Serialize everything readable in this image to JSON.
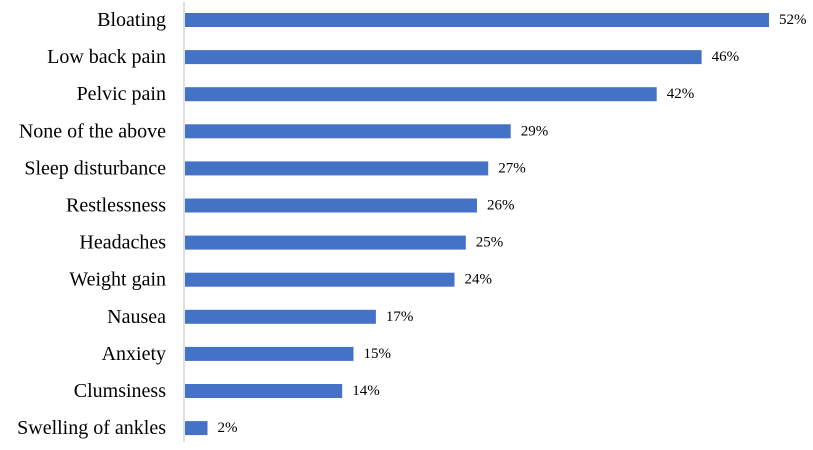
{
  "chart_data": {
    "type": "bar",
    "orientation": "horizontal",
    "title": "",
    "xlabel": "",
    "ylabel": "",
    "categories": [
      "Bloating",
      "Low back pain",
      "Pelvic pain",
      "None of the above",
      "Sleep disturbance",
      "Restlessness",
      "Headaches",
      "Weight gain",
      "Nausea",
      "Anxiety",
      "Clumsiness",
      "Swelling of ankles"
    ],
    "values": [
      52,
      46,
      42,
      29,
      27,
      26,
      25,
      24,
      17,
      15,
      14,
      2
    ],
    "value_labels": [
      "52%",
      "46%",
      "42%",
      "29%",
      "27%",
      "26%",
      "25%",
      "24%",
      "17%",
      "15%",
      "14%",
      "2%"
    ],
    "unit": "%",
    "xlim": [
      0,
      52
    ],
    "grid": false,
    "legend": "none",
    "bar_color": "#4472C4",
    "axis_color": "#BFBFBF"
  }
}
